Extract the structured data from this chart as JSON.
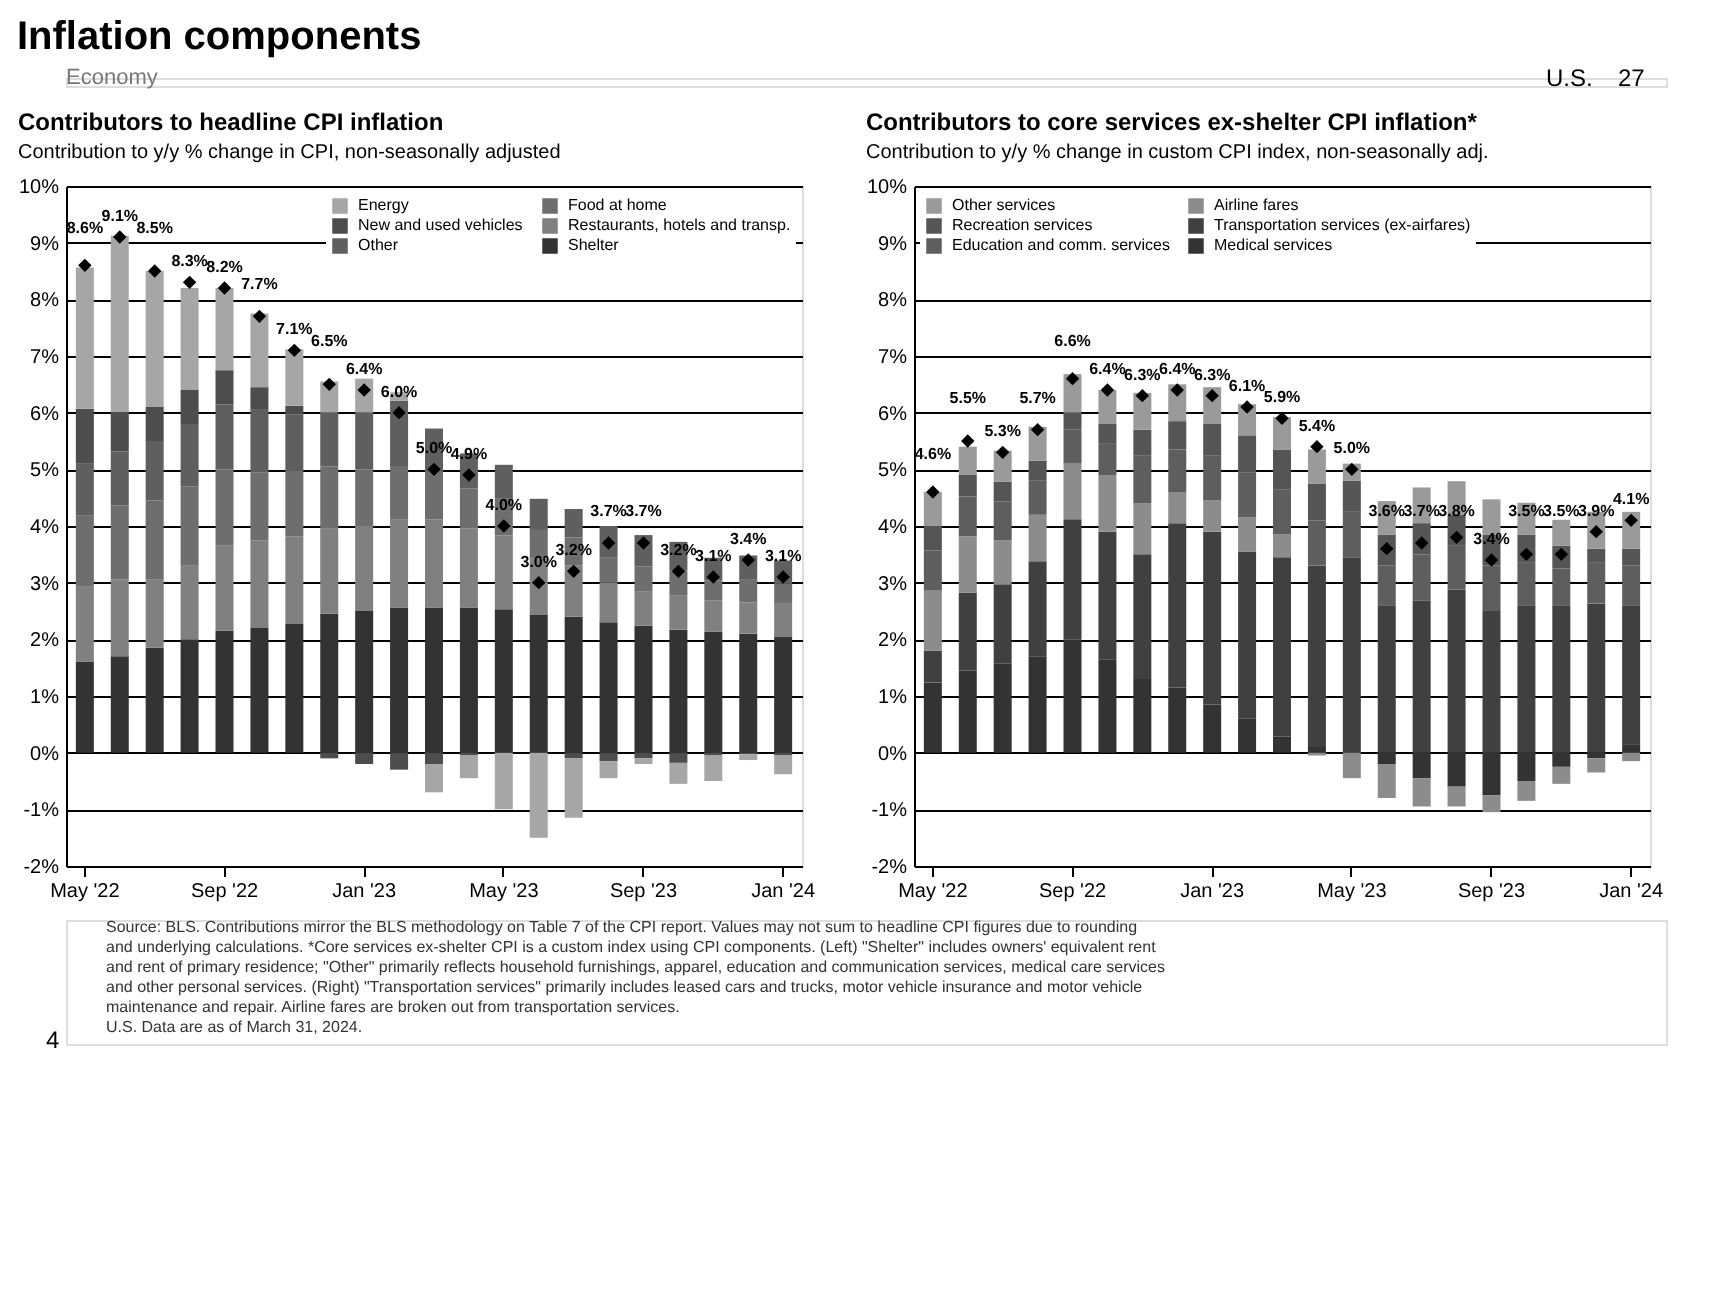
{
  "chart_data": [
    {
      "type": "other",
      "title": "Inflation components",
      "annotations": [
        "U.S.",
        "27",
        "Economy",
        "4",
        "Source: BLS. Contributions mirror the BLS methodology on Table 7 of the CPI report. Values may not sum to headline CPI figures due to rounding",
        "and underlying calculations. *Core services ex-shelter CPI is a custom index using CPI components. (Left) \"Shelter\" includes owners' equivalent rent",
        "and rent of primary residence; \"Other\" primarily reflects household furnishings, apparel, education and communication services, medical care services",
        "and other personal services. (Right) \"Transportation services\" primarily includes leased cars and trucks, motor vehicle insurance and motor vehicle",
        "maintenance and repair. Airline fares are broken out from transportation services.",
        "U.S. Data are as of March 31, 2024."
      ]
    },
    {
      "type": "bar",
      "title": "Contributors to headline CPI inflation",
      "subtitle": "Contribution to y/y % change in CPI, non-seasonally adjusted",
      "stacked": true,
      "grid": "y",
      "legend": "top right",
      "categories": [
        "May '22",
        null,
        null,
        null,
        "Sep '22",
        null,
        null,
        null,
        "Jan '23",
        null,
        null,
        null,
        "May '23",
        null,
        null,
        null,
        "Sep '23",
        null,
        null,
        null,
        "Jan '24"
      ],
      "ylim": [
        -2,
        10
      ],
      "yticks": [
        {
          "value": -2,
          "label": "-2%"
        },
        {
          "value": -1,
          "label": "-1%"
        },
        {
          "value": 0,
          "label": "0%"
        },
        {
          "value": 1,
          "label": "1%"
        },
        {
          "value": 2,
          "label": "2%"
        },
        {
          "value": 3,
          "label": "3%"
        },
        {
          "value": 4,
          "label": "4%"
        },
        {
          "value": 5,
          "label": "5%"
        },
        {
          "value": 6,
          "label": "6%"
        },
        {
          "value": 7,
          "label": "7%"
        },
        {
          "value": 8,
          "label": "8%"
        },
        {
          "value": 9,
          "label": "9%"
        },
        {
          "value": 10,
          "label": "10%"
        }
      ],
      "series": [
        {
          "name": "Shelter",
          "color": "#333333",
          "values": [
            1.61,
            1.7,
            1.85,
            2.0,
            2.15,
            2.2,
            2.27,
            2.45,
            2.5,
            2.56,
            2.56,
            2.56,
            2.53,
            2.43,
            2.4,
            2.3,
            2.24,
            2.17,
            2.14,
            2.1,
            2.04
          ]
        },
        {
          "name": "Restaurants, hotels and transp.",
          "color": "#808080",
          "values": [
            1.32,
            1.36,
            1.2,
            1.3,
            1.5,
            1.55,
            1.55,
            1.5,
            1.5,
            1.55,
            1.56,
            1.4,
            1.3,
            1.0,
            0.9,
            0.7,
            0.6,
            0.6,
            0.55,
            0.55,
            0.6
          ]
        },
        {
          "name": "Food at home",
          "color": "#6e6e6e",
          "values": [
            1.25,
            1.3,
            1.4,
            1.4,
            1.35,
            1.2,
            1.15,
            1.1,
            1.0,
            0.95,
            0.85,
            0.7,
            0.65,
            0.5,
            0.5,
            0.45,
            0.45,
            0.45,
            0.35,
            0.4,
            0.35
          ]
        },
        {
          "name": "Other",
          "color": "#5f5f5f",
          "values": [
            0.92,
            0.96,
            1.05,
            1.1,
            1.15,
            1.1,
            1.0,
            0.95,
            1.0,
            1.15,
            0.75,
            0.62,
            0.6,
            0.55,
            0.5,
            0.55,
            0.55,
            0.5,
            0.4,
            0.43,
            0.4
          ]
        },
        {
          "name": "New and used vehicles",
          "color": "#4d4d4d",
          "values": [
            0.97,
            0.7,
            0.6,
            0.6,
            0.6,
            0.4,
            0.15,
            -0.1,
            -0.2,
            -0.3,
            -0.2,
            -0.05,
            0,
            0,
            -0.1,
            -0.15,
            -0.1,
            -0.18,
            -0.05,
            -0.03,
            -0.05
          ]
        },
        {
          "name": "Energy",
          "color": "#a6a6a6",
          "values": [
            2.49,
            3.1,
            2.4,
            1.8,
            1.45,
            1.3,
            1.0,
            0.55,
            0.6,
            0.15,
            -0.5,
            -0.4,
            -1.0,
            -1.5,
            -1.05,
            -0.3,
            -0.1,
            -0.37,
            -0.45,
            -0.1,
            -0.33
          ]
        },
        {
          "type": "scatter",
          "marker": "diamond",
          "color": "#000000",
          "values": [
            8.6,
            9.1,
            8.5,
            8.3,
            8.2,
            7.7,
            7.1,
            6.5,
            6.4,
            6.0,
            5.0,
            4.9,
            4.0,
            3.0,
            3.2,
            3.7,
            3.7,
            3.2,
            3.1,
            3.4,
            3.1
          ],
          "value_labels": [
            "8.6%",
            "9.1%",
            "8.5%",
            "8.3%",
            "8.2%",
            "7.7%",
            "7.1%",
            "6.5%",
            "6.4%",
            "6.0%",
            "5.0%",
            "4.9%",
            "4.0%",
            "3.0%",
            "3.2%",
            "3.7%",
            "3.7%",
            "3.2%",
            "3.1%",
            "3.4%",
            "3.1%"
          ]
        }
      ]
    },
    {
      "type": "bar",
      "title": "Contributors to core services ex-shelter CPI inflation*",
      "subtitle": "Contribution to y/y % change in custom CPI index, non-seasonally adj.",
      "stacked": true,
      "grid": "y",
      "legend": "top left",
      "categories": [
        "May '22",
        null,
        null,
        null,
        "Sep '22",
        null,
        null,
        null,
        "Jan '23",
        null,
        null,
        null,
        "May '23",
        null,
        null,
        null,
        "Sep '23",
        null,
        null,
        null,
        "Jan '24"
      ],
      "ylim": [
        -2,
        10
      ],
      "yticks": [
        {
          "value": -2,
          "label": "-2%"
        },
        {
          "value": -1,
          "label": "-1%"
        },
        {
          "value": 0,
          "label": "0%"
        },
        {
          "value": 1,
          "label": "1%"
        },
        {
          "value": 2,
          "label": "2%"
        },
        {
          "value": 3,
          "label": "3%"
        },
        {
          "value": 4,
          "label": "4%"
        },
        {
          "value": 5,
          "label": "5%"
        },
        {
          "value": 6,
          "label": "6%"
        },
        {
          "value": 7,
          "label": "7%"
        },
        {
          "value": 8,
          "label": "8%"
        },
        {
          "value": 9,
          "label": "9%"
        },
        {
          "value": 10,
          "label": "10%"
        }
      ],
      "series": [
        {
          "name": "Medical services",
          "color": "#333333",
          "values": [
            1.24,
            1.45,
            1.57,
            1.7,
            2.0,
            1.65,
            1.3,
            1.15,
            0.85,
            0.6,
            0.28,
            0.1,
            0,
            -0.2,
            -0.45,
            -0.6,
            -0.75,
            -0.5,
            -0.25,
            -0.1,
            0.15
          ]
        },
        {
          "name": "Transportation services (ex-airfares)",
          "color": "#404040",
          "values": [
            0.56,
            1.37,
            1.4,
            1.68,
            2.12,
            2.25,
            2.2,
            2.9,
            3.05,
            2.95,
            3.17,
            3.2,
            3.45,
            2.6,
            2.68,
            2.88,
            2.5,
            2.6,
            2.6,
            2.63,
            2.45
          ]
        },
        {
          "name": "Airline fares",
          "color": "#8c8c8c",
          "values": [
            1.07,
            1.0,
            0.78,
            0.82,
            0.98,
            1.0,
            0.9,
            0.55,
            0.55,
            0.6,
            0.4,
            -0.05,
            -0.45,
            -0.6,
            -0.5,
            -0.35,
            -0.3,
            -0.35,
            -0.3,
            -0.25,
            -0.15
          ]
        },
        {
          "name": "Education and comm. services",
          "color": "#5e5e5e",
          "values": [
            0.7,
            0.7,
            0.68,
            0.6,
            0.6,
            0.55,
            0.85,
            0.75,
            0.8,
            0.8,
            0.8,
            0.8,
            0.8,
            0.7,
            0.82,
            0.77,
            0.8,
            0.75,
            0.65,
            0.72,
            0.7
          ]
        },
        {
          "name": "Recreation services",
          "color": "#555555",
          "values": [
            0.43,
            0.38,
            0.35,
            0.35,
            0.3,
            0.35,
            0.45,
            0.5,
            0.55,
            0.65,
            0.7,
            0.65,
            0.55,
            0.55,
            0.55,
            0.55,
            0.55,
            0.5,
            0.4,
            0.25,
            0.3
          ]
        },
        {
          "name": "Other services",
          "color": "#9a9a9a",
          "values": [
            0.6,
            0.5,
            0.55,
            0.6,
            0.68,
            0.6,
            0.65,
            0.65,
            0.65,
            0.55,
            0.57,
            0.6,
            0.3,
            0.59,
            0.63,
            0.59,
            0.62,
            0.56,
            0.46,
            0.65,
            0.65
          ]
        },
        {
          "type": "scatter",
          "marker": "diamond",
          "color": "#000000",
          "values": [
            4.6,
            5.5,
            5.3,
            5.7,
            6.6,
            6.4,
            6.3,
            6.4,
            6.3,
            6.1,
            5.9,
            5.4,
            5.0,
            3.6,
            3.7,
            3.8,
            3.4,
            3.5,
            3.5,
            3.9,
            4.1
          ],
          "value_labels": [
            "4.6%",
            "5.5%",
            "5.3%",
            "5.7%",
            "6.6%",
            "6.4%",
            "6.3%",
            "6.4%",
            "6.3%",
            "6.1%",
            "5.9%",
            "5.4%",
            "5.0%",
            "3.6%",
            "3.7%",
            "3.8%",
            "3.4%",
            "3.5%",
            "3.5%",
            "3.9%",
            "4.1%"
          ]
        }
      ]
    }
  ]
}
